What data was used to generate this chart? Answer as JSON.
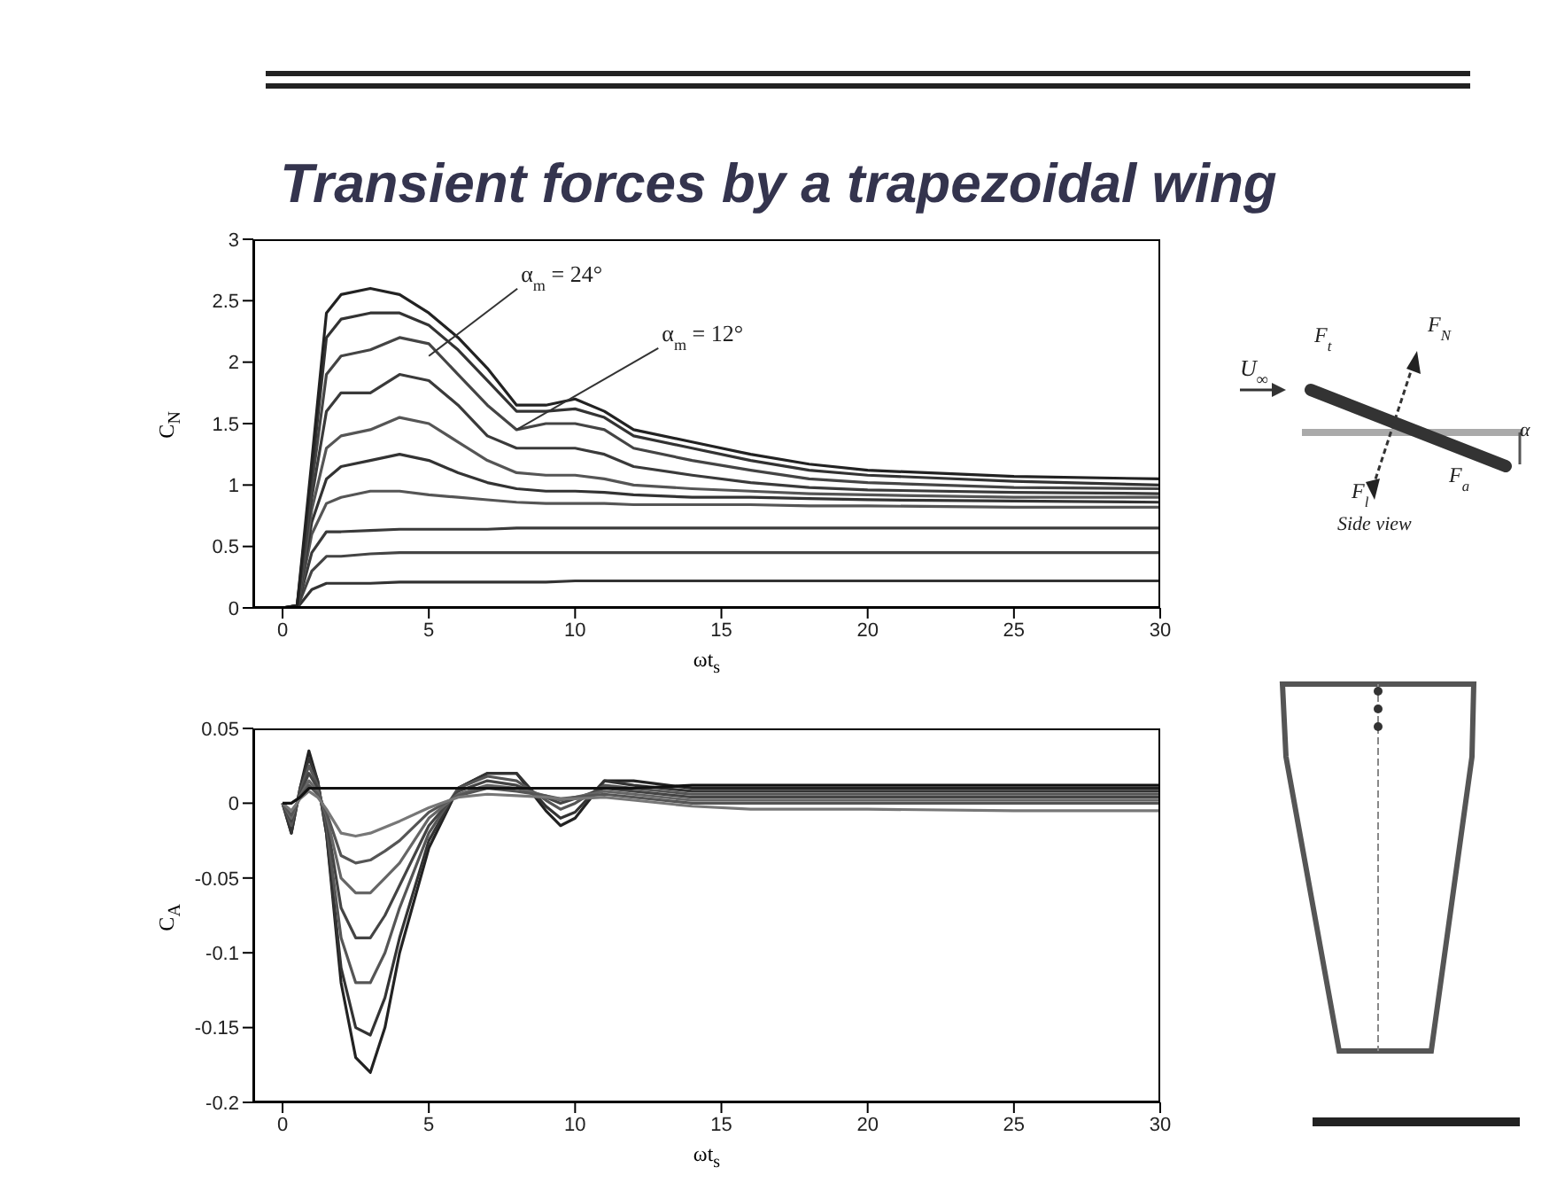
{
  "chart_data": [
    {
      "type": "line",
      "title": "Transient forces by a trapezoidal wing",
      "xlabel": "ωt$_{s}$",
      "ylabel": "C$_{N}$",
      "xlim": [
        -1,
        30
      ],
      "xticks": [
        0,
        5,
        10,
        15,
        20,
        25,
        30
      ],
      "ylim": [
        0,
        3
      ],
      "yticks": [
        0,
        0.5,
        1,
        1.5,
        2,
        2.5,
        3
      ],
      "x": [
        0,
        0.5,
        1,
        1.5,
        2,
        3,
        4,
        5,
        6,
        7,
        8,
        9,
        10,
        11,
        12,
        14,
        16,
        18,
        20,
        25,
        30
      ],
      "series": [
        {
          "color": "#333333",
          "values": [
            0,
            0,
            0.15,
            0.2,
            0.2,
            0.2,
            0.21,
            0.21,
            0.21,
            0.21,
            0.21,
            0.21,
            0.22,
            0.22,
            0.22,
            0.22,
            0.22,
            0.22,
            0.22,
            0.22,
            0.22
          ]
        },
        {
          "color": "#444444",
          "values": [
            0,
            0,
            0.3,
            0.42,
            0.42,
            0.44,
            0.45,
            0.45,
            0.45,
            0.45,
            0.45,
            0.45,
            0.45,
            0.45,
            0.45,
            0.45,
            0.45,
            0.45,
            0.45,
            0.45,
            0.45
          ]
        },
        {
          "color": "#3a3a3a",
          "values": [
            0,
            0,
            0.45,
            0.62,
            0.62,
            0.63,
            0.64,
            0.64,
            0.64,
            0.64,
            0.65,
            0.65,
            0.65,
            0.65,
            0.65,
            0.65,
            0.65,
            0.65,
            0.65,
            0.65,
            0.65
          ]
        },
        {
          "color": "#555555",
          "values": [
            0,
            0,
            0.6,
            0.85,
            0.9,
            0.95,
            0.95,
            0.92,
            0.9,
            0.88,
            0.86,
            0.85,
            0.85,
            0.85,
            0.84,
            0.84,
            0.84,
            0.83,
            0.83,
            0.82,
            0.82
          ]
        },
        {
          "color": "#333333",
          "values": [
            0,
            0,
            0.7,
            1.05,
            1.15,
            1.2,
            1.25,
            1.2,
            1.1,
            1.02,
            0.97,
            0.95,
            0.95,
            0.94,
            0.92,
            0.9,
            0.9,
            0.89,
            0.88,
            0.87,
            0.86
          ]
        },
        {
          "color": "#555555",
          "values": [
            0,
            0,
            0.8,
            1.3,
            1.4,
            1.45,
            1.55,
            1.5,
            1.35,
            1.2,
            1.1,
            1.08,
            1.08,
            1.05,
            1,
            0.97,
            0.95,
            0.93,
            0.92,
            0.9,
            0.9
          ]
        },
        {
          "color": "#3a3a3a",
          "values": [
            0,
            0.02,
            0.9,
            1.6,
            1.75,
            1.75,
            1.9,
            1.85,
            1.65,
            1.4,
            1.3,
            1.3,
            1.3,
            1.25,
            1.15,
            1.08,
            1.02,
            0.98,
            0.96,
            0.94,
            0.93
          ]
        },
        {
          "color": "#444444",
          "values": [
            0,
            0.02,
            1,
            1.9,
            2.05,
            2.1,
            2.2,
            2.15,
            1.9,
            1.65,
            1.45,
            1.5,
            1.5,
            1.45,
            1.3,
            1.2,
            1.12,
            1.05,
            1.02,
            0.98,
            0.97
          ]
        },
        {
          "color": "#333333",
          "values": [
            0,
            0.02,
            1.1,
            2.2,
            2.35,
            2.4,
            2.4,
            2.3,
            2.1,
            1.85,
            1.6,
            1.6,
            1.62,
            1.55,
            1.4,
            1.3,
            1.2,
            1.12,
            1.08,
            1.03,
            1
          ]
        },
        {
          "color": "#222222",
          "values": [
            0,
            0.02,
            1.2,
            2.4,
            2.55,
            2.6,
            2.55,
            2.4,
            2.2,
            1.95,
            1.65,
            1.65,
            1.7,
            1.6,
            1.45,
            1.35,
            1.25,
            1.17,
            1.12,
            1.07,
            1.05
          ]
        }
      ],
      "annotations": [
        {
          "text": "α$_{m}$ = 24°",
          "x": 5,
          "y": 2.05
        },
        {
          "text": "α$_{m}$ = 12°",
          "x": 8,
          "y": 1.45
        }
      ]
    },
    {
      "type": "line",
      "xlabel": "ωt$_{s}$",
      "ylabel": "C$_{A}$",
      "xlim": [
        -1,
        30
      ],
      "xticks": [
        0,
        5,
        10,
        15,
        20,
        25,
        30
      ],
      "ylim": [
        -0.2,
        0.05
      ],
      "yticks": [
        -0.2,
        -0.15,
        -0.1,
        -0.05,
        0,
        0.05
      ],
      "x": [
        0,
        0.3,
        0.6,
        0.9,
        1.2,
        1.5,
        2,
        2.5,
        3,
        3.5,
        4,
        5,
        6,
        7,
        8,
        9,
        9.5,
        10,
        11,
        12,
        14,
        16,
        20,
        25,
        30
      ],
      "series": [
        {
          "color": "#222222",
          "values": [
            0,
            -0.02,
            0.01,
            0.035,
            0.015,
            -0.02,
            -0.12,
            -0.17,
            -0.18,
            -0.15,
            -0.1,
            -0.03,
            0.01,
            0.02,
            0.02,
            -0.005,
            -0.015,
            -0.01,
            0.015,
            0.015,
            0.01,
            0.01,
            0.01,
            0.01,
            0.01
          ]
        },
        {
          "color": "#333333",
          "values": [
            0,
            -0.02,
            0.01,
            0.03,
            0.015,
            -0.02,
            -0.11,
            -0.15,
            -0.155,
            -0.13,
            -0.09,
            -0.025,
            0.01,
            0.02,
            0.02,
            -0.002,
            -0.01,
            -0.006,
            0.015,
            0.012,
            0.008,
            0.008,
            0.008,
            0.008,
            0.008
          ]
        },
        {
          "color": "#555555",
          "values": [
            0,
            -0.015,
            0.008,
            0.025,
            0.012,
            -0.015,
            -0.09,
            -0.12,
            -0.12,
            -0.1,
            -0.07,
            -0.02,
            0.01,
            0.018,
            0.015,
            0.002,
            -0.004,
            0,
            0.012,
            0.01,
            0.006,
            0.006,
            0.006,
            0.006,
            0.006
          ]
        },
        {
          "color": "#444444",
          "values": [
            0,
            -0.012,
            0.006,
            0.02,
            0.01,
            -0.01,
            -0.07,
            -0.09,
            -0.09,
            -0.075,
            -0.055,
            -0.015,
            0.008,
            0.015,
            0.012,
            0.004,
            0,
            0.003,
            0.01,
            0.008,
            0.004,
            0.004,
            0.004,
            0.004,
            0.004
          ]
        },
        {
          "color": "#666666",
          "values": [
            0,
            -0.01,
            0.005,
            0.015,
            0.008,
            -0.008,
            -0.05,
            -0.06,
            -0.06,
            -0.05,
            -0.04,
            -0.01,
            0.006,
            0.012,
            0.01,
            0.005,
            0.002,
            0.004,
            0.008,
            0.006,
            0.002,
            0.002,
            0.002,
            0.002,
            0.002
          ]
        },
        {
          "color": "#555555",
          "values": [
            0,
            -0.008,
            0.004,
            0.012,
            0.006,
            -0.006,
            -0.035,
            -0.04,
            -0.038,
            -0.032,
            -0.025,
            -0.006,
            0.005,
            0.01,
            0.008,
            0.005,
            0.003,
            0.004,
            0.006,
            0.004,
            0,
            0,
            0,
            0,
            0
          ]
        },
        {
          "color": "#777777",
          "values": [
            0,
            -0.005,
            0.003,
            0.008,
            0.004,
            -0.004,
            -0.02,
            -0.022,
            -0.02,
            -0.016,
            -0.012,
            -0.003,
            0.004,
            0.006,
            0.005,
            0.004,
            0.003,
            0.003,
            0.004,
            0.002,
            -0.002,
            -0.004,
            -0.004,
            -0.005,
            -0.005
          ]
        },
        {
          "color": "#111111",
          "values": [
            0,
            0,
            0.004,
            0.01,
            0.01,
            0.01,
            0.01,
            0.01,
            0.01,
            0.01,
            0.01,
            0.01,
            0.01,
            0.01,
            0.01,
            0.01,
            0.01,
            0.01,
            0.01,
            0.01,
            0.012,
            0.012,
            0.012,
            0.012,
            0.012
          ]
        }
      ]
    },
    {
      "type": "other",
      "annotations": [
        "U$_{∞}$",
        "F$_{t}$",
        "F$_{N}$",
        "F$_{l}$",
        "F$_{a}$",
        "α",
        "Side view"
      ]
    }
  ]
}
